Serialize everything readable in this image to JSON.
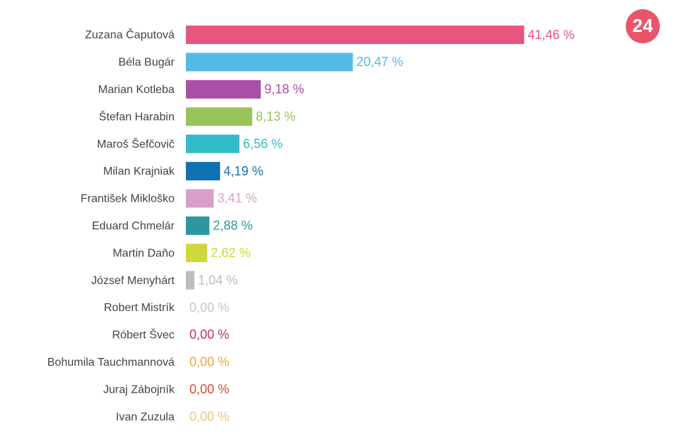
{
  "chart_data": {
    "type": "bar",
    "orientation": "horizontal",
    "categories": [
      "Zuzana Čaputová",
      "Béla Bugár",
      "Marian Kotleba",
      "Štefan Harabin",
      "Maroš Šefčovič",
      "Milan Krajniak",
      "František Mikloško",
      "Eduard Chmelár",
      "Martin Daňo",
      "József Menyhárt",
      "Robert Mistrík",
      "Róbert Švec",
      "Bohumila Tauchmannová",
      "Juraj Zábojník",
      "Ivan Zuzula"
    ],
    "values": [
      41.46,
      20.47,
      9.18,
      8.13,
      6.56,
      4.19,
      3.41,
      2.88,
      2.62,
      1.04,
      0,
      0,
      0,
      0,
      0
    ],
    "value_labels": [
      "41,46 %",
      "20,47 %",
      "9,18 %",
      "8,13 %",
      "6,56 %",
      "4,19 %",
      "3,41 %",
      "2,88 %",
      "2,62 %",
      "1,04 %",
      "0,00 %",
      "0,00 %",
      "0,00 %",
      "0,00 %",
      "0,00 %"
    ],
    "colors": [
      "#e8557f",
      "#55b9e8",
      "#a94fa5",
      "#97c459",
      "#32bcc8",
      "#1271b5",
      "#d8a0c9",
      "#2c97a1",
      "#cfd83a",
      "#bcbcbc",
      "#c8c8c8",
      "#c0334f",
      "#f0a43b",
      "#d84a33",
      "#f3c27f"
    ]
  },
  "logo": "24"
}
